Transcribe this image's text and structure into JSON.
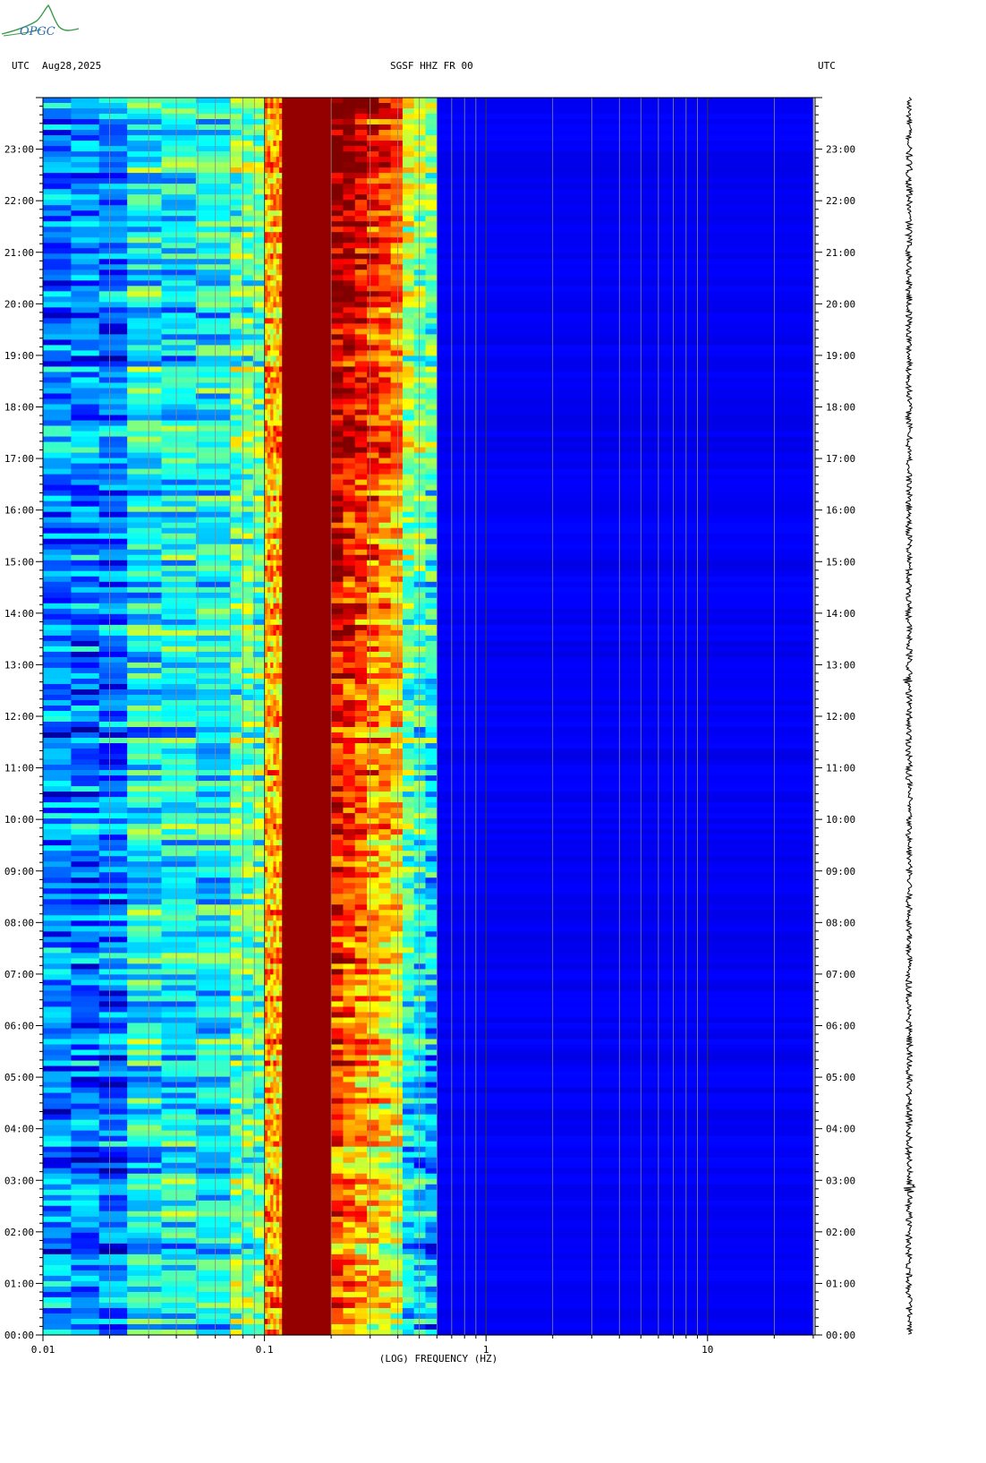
{
  "logo": {
    "text": "OPGC"
  },
  "header": {
    "left_tz": "UTC",
    "date": "Aug28,2025",
    "station": "SGSF HHZ FR 00",
    "right_tz": "UTC"
  },
  "chart_data": {
    "type": "heatmap",
    "title": "SGSF HHZ FR 00",
    "xlabel": "(LOG) FREQUENCY (HZ)",
    "ylabel": "",
    "x_scale": "log",
    "xlim": [
      0.01,
      30
    ],
    "x_ticks": [
      {
        "value": 0.01,
        "label": "0.01"
      },
      {
        "value": 0.1,
        "label": "0.1"
      },
      {
        "value": 1,
        "label": "1"
      },
      {
        "value": 10,
        "label": "10"
      }
    ],
    "y_ticks_hours": [
      "00:00",
      "01:00",
      "02:00",
      "03:00",
      "04:00",
      "05:00",
      "06:00",
      "07:00",
      "08:00",
      "09:00",
      "10:00",
      "11:00",
      "12:00",
      "13:00",
      "14:00",
      "15:00",
      "16:00",
      "17:00",
      "18:00",
      "19:00",
      "20:00",
      "21:00",
      "22:00",
      "23:00"
    ],
    "ylim_hours": [
      0,
      24
    ],
    "colormap": "jet",
    "power_bands": [
      {
        "freq_range": [
          0.01,
          0.024
        ],
        "level": 0.25
      },
      {
        "freq_range": [
          0.024,
          0.07
        ],
        "level": 0.38
      },
      {
        "freq_range": [
          0.07,
          0.1
        ],
        "level": 0.47
      },
      {
        "freq_range": [
          0.1,
          0.12
        ],
        "level": 0.7
      },
      {
        "freq_range": [
          0.12,
          0.2
        ],
        "level": 1.0
      },
      {
        "freq_range": [
          0.2,
          0.42
        ],
        "level": 0.85
      },
      {
        "freq_range": [
          0.42,
          0.6
        ],
        "level": 0.45
      },
      {
        "freq_range": [
          0.6,
          30
        ],
        "level": 0.1
      }
    ],
    "trace_label": ""
  }
}
